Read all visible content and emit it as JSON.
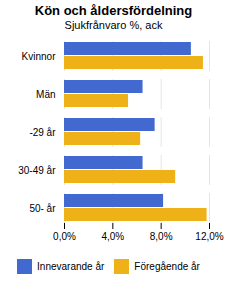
{
  "chart_data": {
    "type": "bar",
    "orientation": "horizontal",
    "title": "Kön och åldersfördelning",
    "subtitle": "Sjukfrånvaro %, ack",
    "categories": [
      "Kvinnor",
      "Män",
      "-29 år",
      "30-49 år",
      "50- år"
    ],
    "series": [
      {
        "name": "Innevarande år",
        "values": [
          10.5,
          6.5,
          7.5,
          6.5,
          8.2
        ]
      },
      {
        "name": "Föregående år",
        "values": [
          11.5,
          5.3,
          6.3,
          9.2,
          11.8
        ]
      }
    ],
    "xlim": [
      0,
      12
    ],
    "xticks": [
      {
        "value": 0,
        "label": "0,0%"
      },
      {
        "value": 4,
        "label": "4,0%"
      },
      {
        "value": 8,
        "label": "8,0%"
      },
      {
        "value": 12,
        "label": "12,0%"
      }
    ],
    "grid": true,
    "legend": "bottom"
  }
}
